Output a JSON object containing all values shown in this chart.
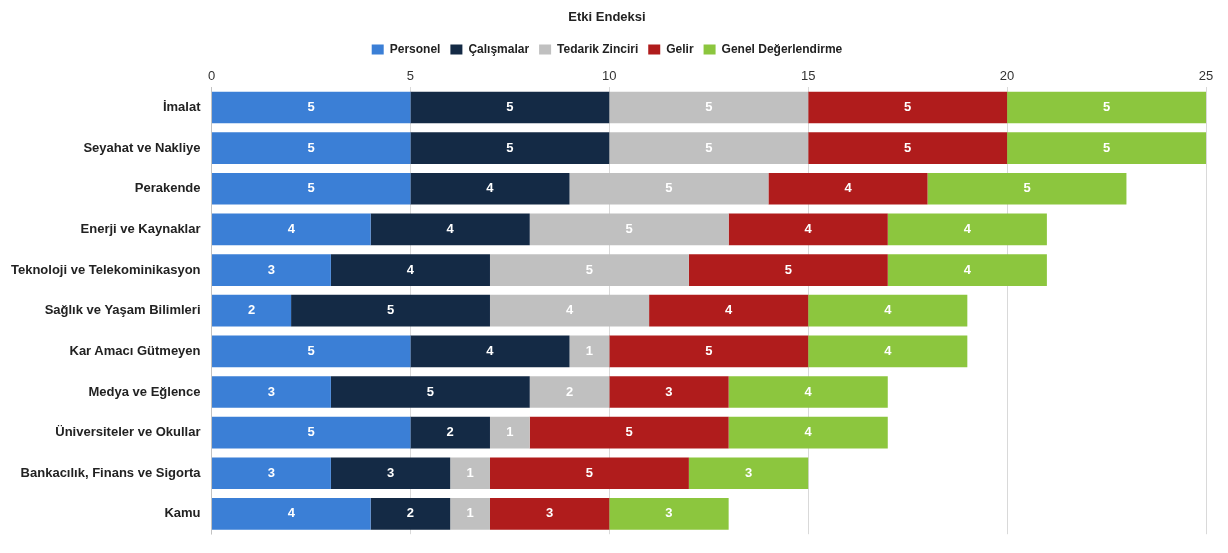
{
  "chart_data": {
    "type": "bar",
    "title": "Etki Endeksi",
    "orientation": "horizontal",
    "stacked": true,
    "data_labels": true,
    "grid": "x",
    "legend": "top",
    "categories": [
      "İmalat",
      "Seyahat ve Nakliye",
      "Perakende",
      "Enerji ve Kaynaklar",
      "Teknoloji ve Telekominikasyon",
      "Sağlık ve Yaşam Bilimleri",
      "Kar Amacı Gütmeyen",
      "Medya ve Eğlence",
      "Üniversiteler ve Okullar",
      "Bankacılık, Finans ve Sigorta",
      "Kamu"
    ],
    "xlim": [
      0,
      25
    ],
    "xticks": [
      0,
      5,
      10,
      15,
      20,
      25
    ],
    "series": [
      {
        "name": "Personel",
        "color": "#3b7fd6",
        "values": [
          5,
          5,
          5,
          4,
          3,
          2,
          5,
          3,
          5,
          3,
          4
        ]
      },
      {
        "name": "Çalışmalar",
        "color": "#142a45",
        "values": [
          5,
          5,
          4,
          4,
          4,
          5,
          4,
          5,
          2,
          3,
          2
        ]
      },
      {
        "name": "Tedarik Zinciri",
        "color": "#c0c0c0",
        "values": [
          5,
          5,
          5,
          5,
          5,
          4,
          1,
          2,
          1,
          1,
          1
        ]
      },
      {
        "name": "Gelir",
        "color": "#b01c1c",
        "values": [
          5,
          5,
          4,
          4,
          5,
          4,
          5,
          3,
          5,
          5,
          3
        ]
      },
      {
        "name": "Genel Değerlendirme",
        "color": "#8cc63e",
        "values": [
          5,
          5,
          5,
          4,
          4,
          4,
          4,
          4,
          4,
          3,
          3
        ]
      }
    ]
  }
}
